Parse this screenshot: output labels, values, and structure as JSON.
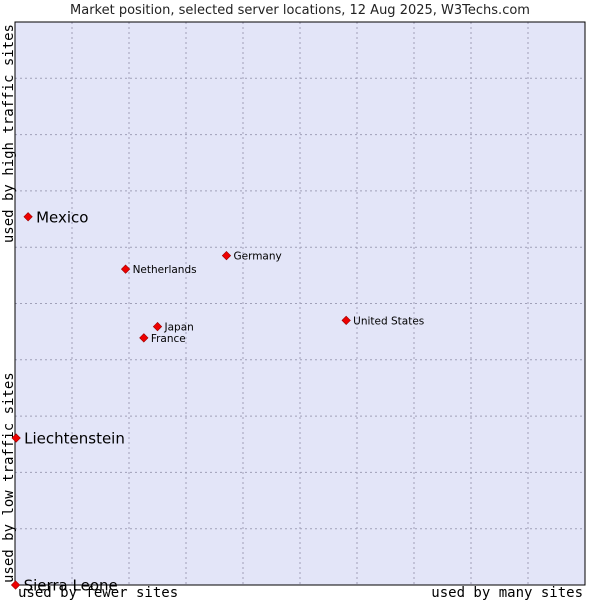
{
  "chart_data": {
    "type": "scatter",
    "title": "Market position, selected server locations, 12 Aug 2025, W3Techs.com",
    "xlabel_left": "used by fewer sites",
    "xlabel_right": "used by many sites",
    "ylabel_top": "used by high traffic sites",
    "ylabel_bottom": "used by low traffic sites",
    "xlim": [
      0,
      100
    ],
    "ylim": [
      0,
      100
    ],
    "grid": true,
    "marker_color": "#ee0000",
    "plot_background": "#e3e5f8",
    "points": [
      {
        "name": "Mexico",
        "x": 2.3,
        "y": 65.4,
        "emphasis": true
      },
      {
        "name": "Liechtenstein",
        "x": 0.2,
        "y": 26.1,
        "emphasis": true
      },
      {
        "name": "Sierra Leone",
        "x": 0.1,
        "y": 0.0,
        "emphasis": true
      },
      {
        "name": "Germany",
        "x": 37.1,
        "y": 58.5,
        "emphasis": false
      },
      {
        "name": "Netherlands",
        "x": 19.4,
        "y": 56.1,
        "emphasis": false
      },
      {
        "name": "United States",
        "x": 58.1,
        "y": 47.0,
        "emphasis": false
      },
      {
        "name": "Japan",
        "x": 25.0,
        "y": 45.9,
        "emphasis": false
      },
      {
        "name": "France",
        "x": 22.6,
        "y": 43.9,
        "emphasis": false
      }
    ]
  }
}
